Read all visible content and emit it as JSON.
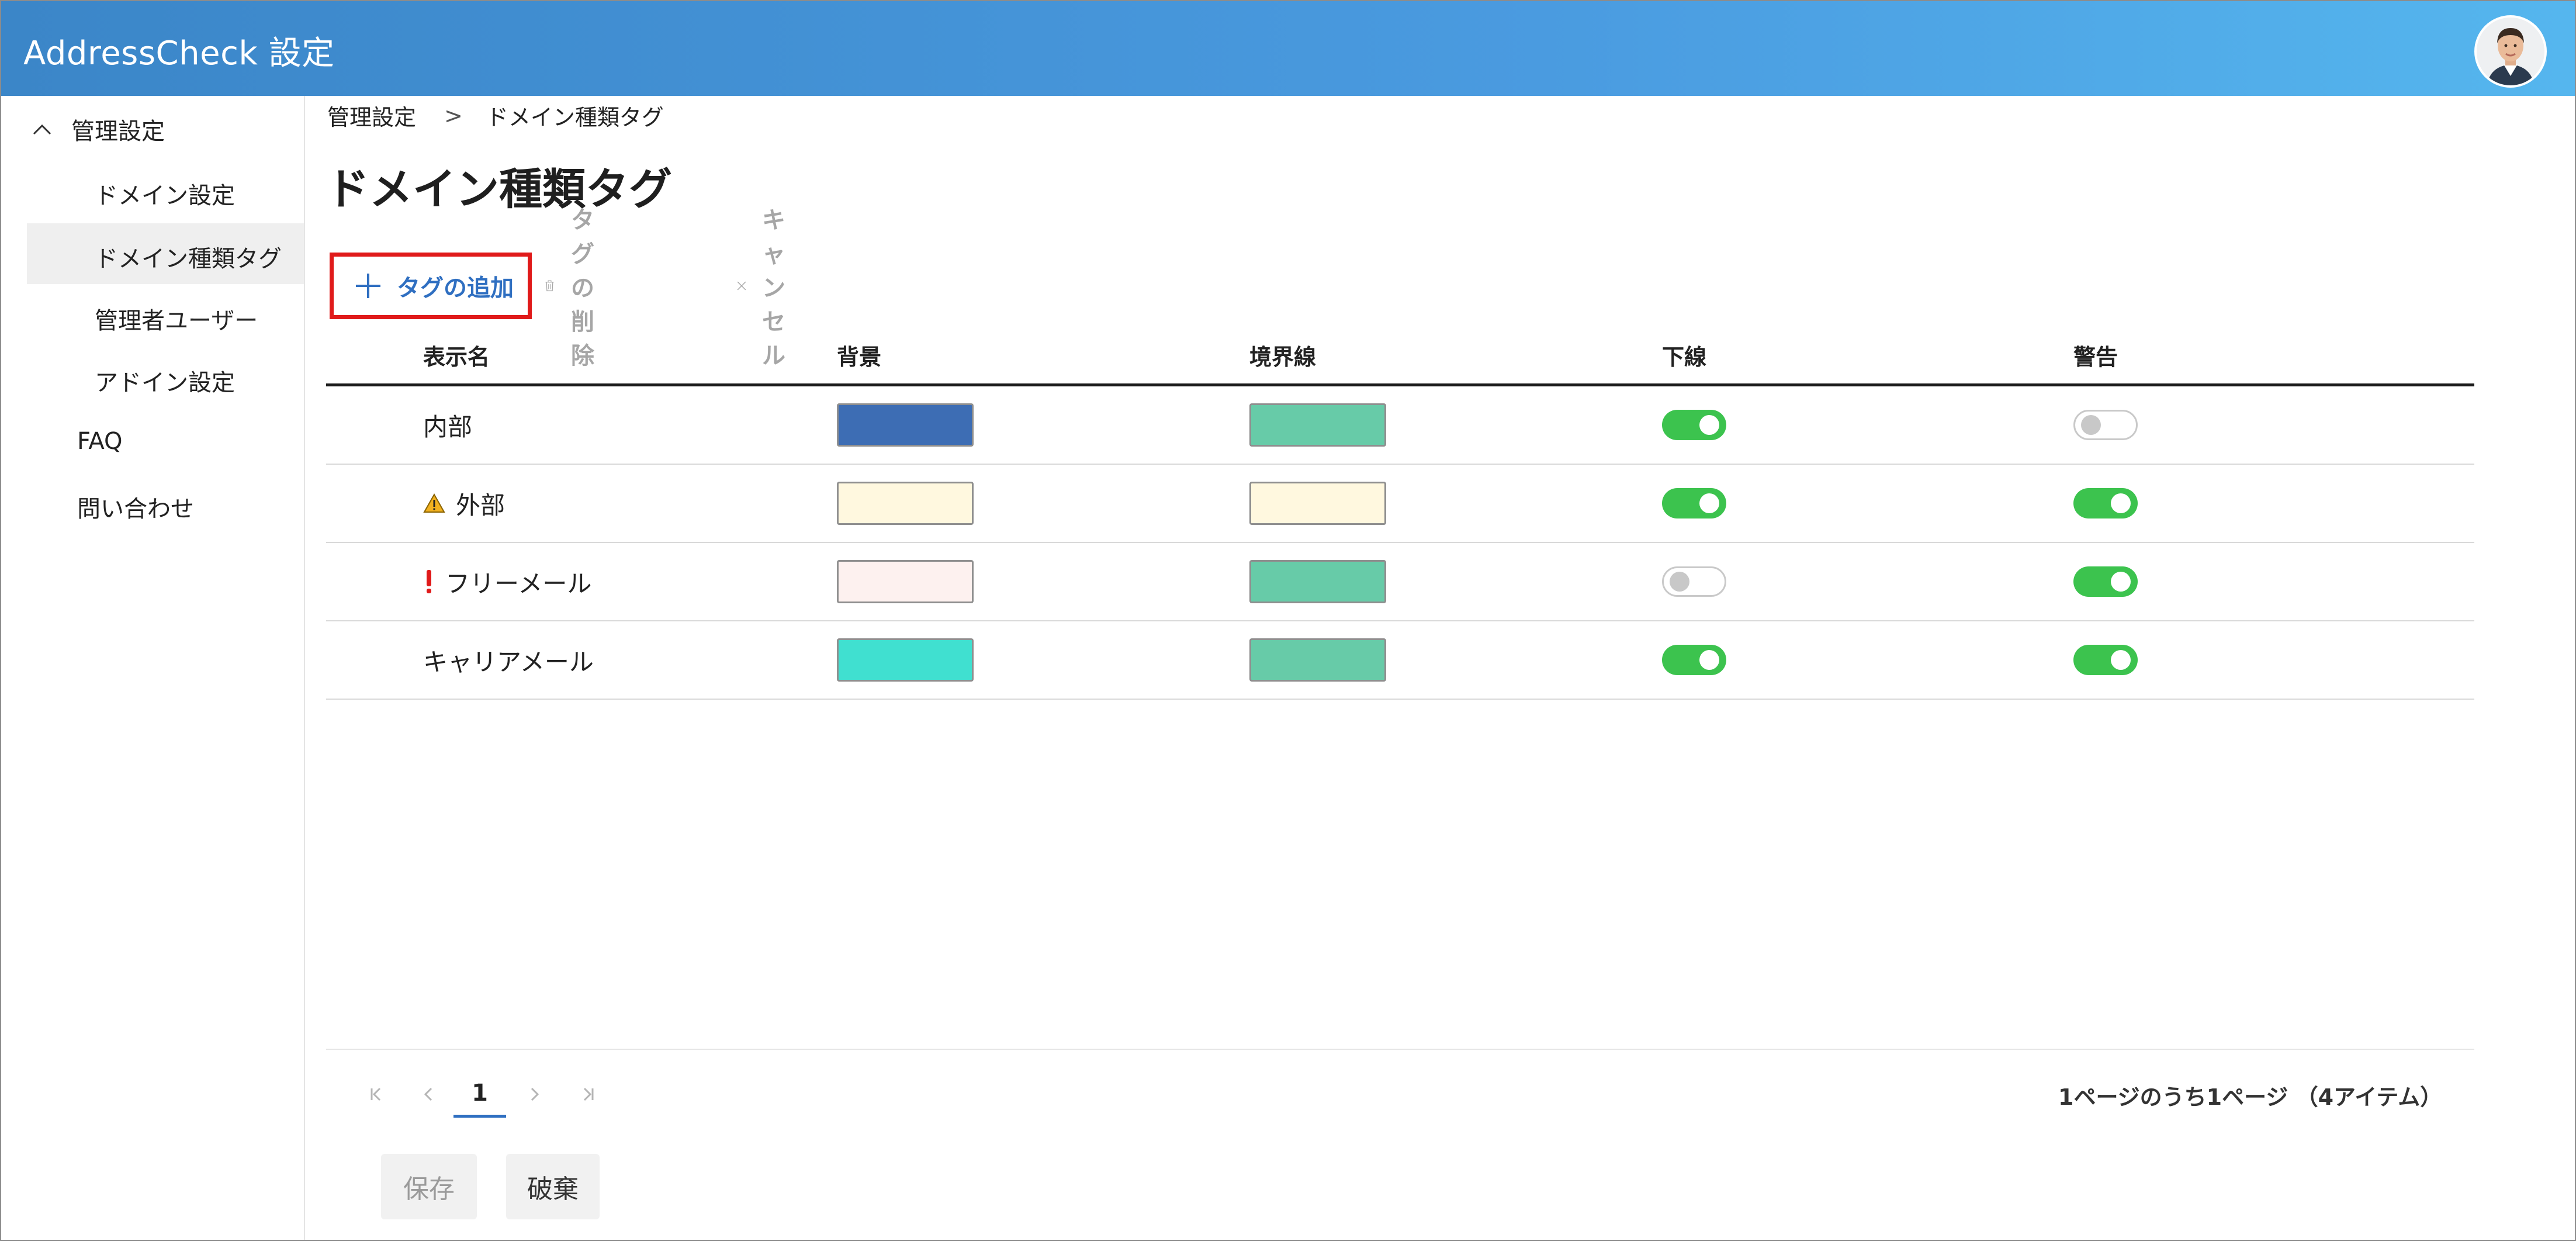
{
  "header": {
    "app_title": "AddressCheck 設定"
  },
  "sidebar": {
    "group_label": "管理設定",
    "sub_items": [
      "ドメイン設定",
      "ドメイン種類タグ",
      "管理者ユーザー",
      "アドイン設定"
    ],
    "active_item": "ドメイン種類タグ",
    "top_items": [
      "FAQ",
      "問い合わせ"
    ]
  },
  "breadcrumb": {
    "root": "管理設定",
    "separator": ">",
    "current": "ドメイン種類タグ"
  },
  "page_title": "ドメイン種類タグ",
  "toolbar": {
    "add_label": "タグの追加",
    "delete_label": "タグの削除",
    "cancel_label": "キャンセル"
  },
  "table": {
    "headers": [
      "表示名",
      "背景",
      "境界線",
      "下線",
      "警告"
    ],
    "rows": [
      {
        "name": "内部",
        "icon": "",
        "background": "#3d6db4",
        "border": "#67cba8",
        "underline": true,
        "warning": false
      },
      {
        "name": "外部",
        "icon": "warning-triangle-icon",
        "background": "#fff8df",
        "border": "#fff8df",
        "underline": true,
        "warning": true
      },
      {
        "name": "フリーメール",
        "icon": "exclamation-icon",
        "background": "#fdf1ef",
        "border": "#67cba8",
        "underline": false,
        "warning": true
      },
      {
        "name": "キャリアメール",
        "icon": "",
        "background": "#40e0d0",
        "border": "#67cba8",
        "underline": true,
        "warning": true
      }
    ]
  },
  "pagination": {
    "current_page": "1",
    "summary": "1ページのうち1ページ （4アイテム）"
  },
  "footer": {
    "save_label": "保存",
    "discard_label": "破棄"
  },
  "colors": {
    "accent": "#2f6fc1",
    "toggle_on": "#3cc34e",
    "highlight_border": "#e01a1a"
  }
}
